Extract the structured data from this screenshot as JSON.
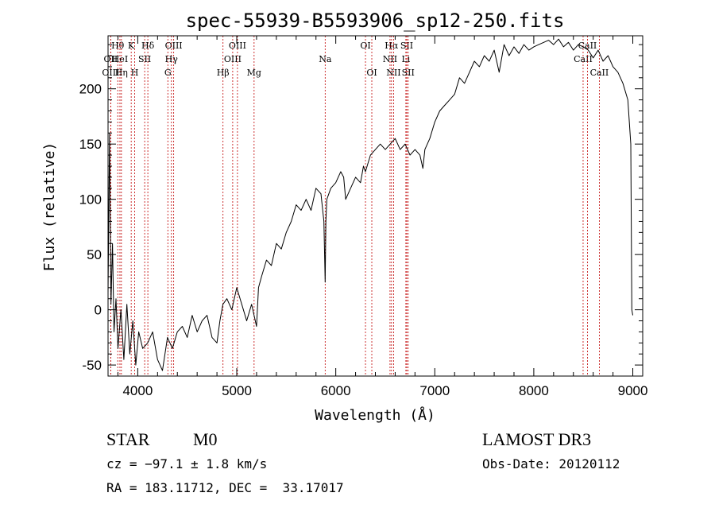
{
  "chart_data": {
    "type": "line",
    "title": "spec-55939-B5593906_sp12-250.fits",
    "xlabel": "Wavelength (Å)",
    "ylabel": "Flux (relative)",
    "xlim": [
      3700,
      9100
    ],
    "ylim": [
      -60,
      248
    ],
    "x_ticks": [
      4000,
      5000,
      6000,
      7000,
      8000,
      9000
    ],
    "y_ticks": [
      -50,
      0,
      50,
      100,
      150,
      200
    ],
    "series": [
      {
        "x": [
          3700,
          3715,
          3730,
          3745,
          3760,
          3780,
          3800,
          3830,
          3860,
          3890,
          3920,
          3950,
          3980,
          4010,
          4050,
          4100,
          4150,
          4200,
          4250,
          4300,
          4350,
          4400,
          4450,
          4500,
          4550,
          4600,
          4650,
          4700,
          4750,
          4800,
          4830,
          4860,
          4900,
          4950,
          5000,
          5050,
          5100,
          5150,
          5200,
          5220,
          5250,
          5300,
          5350,
          5400,
          5450,
          5500,
          5550,
          5600,
          5650,
          5700,
          5750,
          5800,
          5850,
          5880,
          5893,
          5900,
          5910,
          5950,
          6000,
          6050,
          6080,
          6100,
          6150,
          6200,
          6250,
          6280,
          6300,
          6350,
          6400,
          6450,
          6500,
          6550,
          6600,
          6650,
          6700,
          6750,
          6800,
          6850,
          6880,
          6900,
          6950,
          7000,
          7050,
          7100,
          7150,
          7200,
          7250,
          7300,
          7350,
          7400,
          7450,
          7500,
          7550,
          7600,
          7650,
          7700,
          7750,
          7800,
          7850,
          7900,
          7950,
          8000,
          8050,
          8100,
          8150,
          8200,
          8250,
          8300,
          8350,
          8400,
          8450,
          8500,
          8550,
          8600,
          8650,
          8700,
          8750,
          8800,
          8850,
          8900,
          8950,
          8980,
          8990,
          9000
        ],
        "y": [
          15,
          160,
          5,
          60,
          -20,
          10,
          -35,
          0,
          -45,
          5,
          -40,
          -10,
          -50,
          -20,
          -35,
          -30,
          -20,
          -45,
          -55,
          -25,
          -35,
          -20,
          -15,
          -25,
          -5,
          -20,
          -10,
          -5,
          -25,
          -30,
          -10,
          5,
          10,
          0,
          20,
          5,
          -10,
          5,
          -15,
          20,
          30,
          45,
          40,
          60,
          55,
          70,
          80,
          95,
          90,
          100,
          90,
          110,
          105,
          80,
          25,
          80,
          100,
          110,
          115,
          125,
          120,
          100,
          110,
          120,
          115,
          130,
          125,
          140,
          145,
          150,
          145,
          150,
          155,
          145,
          150,
          140,
          145,
          140,
          128,
          145,
          155,
          170,
          180,
          185,
          190,
          195,
          210,
          205,
          215,
          225,
          220,
          230,
          225,
          235,
          215,
          240,
          230,
          238,
          232,
          240,
          235,
          238,
          240,
          242,
          244,
          240,
          245,
          238,
          242,
          235,
          240,
          238,
          235,
          228,
          235,
          225,
          230,
          220,
          215,
          205,
          190,
          150,
          0,
          -5
        ]
      }
    ],
    "lines": [
      {
        "name": "Hθ",
        "x": 3798,
        "row": 1,
        "side": "top"
      },
      {
        "name": "OII",
        "x": 3727,
        "row": 2,
        "side": "top"
      },
      {
        "name": "OIII",
        "x": 3727,
        "row": 3,
        "side": "top"
      },
      {
        "name": "HeI",
        "x": 3820,
        "row": 2,
        "side": "top"
      },
      {
        "name": "Hη",
        "x": 3835,
        "row": 3,
        "side": "top"
      },
      {
        "name": "K",
        "x": 3934,
        "row": 1,
        "side": "top"
      },
      {
        "name": "H",
        "x": 3969,
        "row": 3,
        "side": "top"
      },
      {
        "name": "SII",
        "x": 4070,
        "row": 2,
        "side": "top"
      },
      {
        "name": "Hδ",
        "x": 4102,
        "row": 1,
        "side": "top"
      },
      {
        "name": "OIII",
        "x": 4363,
        "row": 1,
        "side": "top"
      },
      {
        "name": "Hγ",
        "x": 4340,
        "row": 2,
        "side": "top"
      },
      {
        "name": "G",
        "x": 4304,
        "row": 3,
        "side": "top"
      },
      {
        "name": "Hβ",
        "x": 4861,
        "row": 3,
        "side": "top"
      },
      {
        "name": "OIII",
        "x": 4959,
        "row": 2,
        "side": "top"
      },
      {
        "name": "OIII",
        "x": 5007,
        "row": 1,
        "side": "top"
      },
      {
        "name": "Mg",
        "x": 5175,
        "row": 3,
        "side": "top"
      },
      {
        "name": "Na",
        "x": 5893,
        "row": 2,
        "side": "top"
      },
      {
        "name": "OI",
        "x": 6300,
        "row": 1,
        "side": "top"
      },
      {
        "name": "OI",
        "x": 6364,
        "row": 3,
        "side": "top"
      },
      {
        "name": "Hα",
        "x": 6563,
        "row": 1,
        "side": "top"
      },
      {
        "name": "NII",
        "x": 6548,
        "row": 2,
        "side": "top"
      },
      {
        "name": "NII",
        "x": 6584,
        "row": 3,
        "side": "top"
      },
      {
        "name": "SII",
        "x": 6717,
        "row": 1,
        "side": "top"
      },
      {
        "name": "Li",
        "x": 6708,
        "row": 2,
        "side": "top"
      },
      {
        "name": "SII",
        "x": 6731,
        "row": 3,
        "side": "top"
      },
      {
        "name": "CaII",
        "x": 8498,
        "row": 2,
        "side": "top"
      },
      {
        "name": "CaII",
        "x": 8542,
        "row": 1,
        "side": "top"
      },
      {
        "name": "CaII",
        "x": 8662,
        "row": 3,
        "side": "top"
      }
    ]
  },
  "info": {
    "class": "STAR",
    "subclass": "M0",
    "survey": "LAMOST DR3",
    "cz": "cz = −97.1 ± 1.8 km/s",
    "obs_date": "Obs-Date: 20120112",
    "coords": "RA = 183.11712, DEC =  33.17017"
  }
}
